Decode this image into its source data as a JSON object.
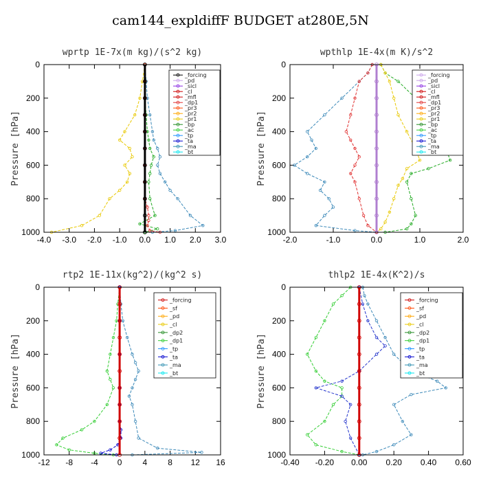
{
  "figure_title": "cam144_expldiffF  BUDGET at280E,5N",
  "chart_data": [
    {
      "type": "line",
      "title": "wprtp  1E-7x(m kg)/(s^2 kg)",
      "ylabel": "Pressure [hPa]",
      "xlim": [
        -4.0,
        3.0
      ],
      "ylim": [
        1000,
        0
      ],
      "xticks": [
        "-4.0",
        "-3.0",
        "-2.0",
        "-1.0",
        "0.0",
        "1.0",
        "2.0",
        "3.0"
      ],
      "xtick_values": [
        -4,
        -3,
        -2,
        -1,
        0,
        1,
        2,
        3
      ],
      "yticks": [
        "0",
        "200",
        "400",
        "600",
        "800",
        "1000"
      ],
      "ytick_values": [
        0,
        200,
        400,
        600,
        800,
        1000
      ],
      "legend": [
        "_forcing",
        "_pd",
        "_sicl",
        "_cl",
        "_mfl",
        "_dp1",
        "_pr3",
        "_pr2",
        "_pr1",
        "_bp",
        "_ac",
        "_tp",
        "_ta",
        "_ma",
        "_bt"
      ],
      "legend_colors": [
        "#000000",
        "#c8a0e8",
        "#8a2be2",
        "#cc0000",
        "#cc0000",
        "#e03030",
        "#ff4500",
        "#ffa500",
        "#e8c800",
        "#228b22",
        "#32cd32",
        "#1e90ff",
        "#0000cd",
        "#2f8fb0",
        "#00e5ee"
      ],
      "series": [
        {
          "name": "_tp",
          "color": "#3a88b8",
          "x": [
            0,
            0.05,
            0.1,
            0.2,
            0.3,
            0.35,
            0.5,
            0.6,
            0.5,
            0.6,
            0.8,
            1.0,
            1.3,
            1.8,
            2.3,
            1.2,
            0.3
          ],
          "y": [
            0,
            100,
            200,
            300,
            400,
            450,
            500,
            550,
            600,
            650,
            700,
            750,
            800,
            900,
            960,
            990,
            1000
          ]
        },
        {
          "name": "_ac",
          "color": "#22aa22",
          "x": [
            0,
            0,
            0,
            0.05,
            0.1,
            0.15,
            0.2,
            0.35,
            0.25,
            0.2,
            0.15,
            0.2,
            0.4,
            -0.2,
            0.5,
            0
          ],
          "y": [
            0,
            100,
            200,
            300,
            400,
            450,
            500,
            550,
            600,
            650,
            700,
            800,
            900,
            950,
            980,
            1000
          ]
        },
        {
          "name": "_pr1",
          "color": "#e8c800",
          "x": [
            0,
            -0.1,
            -0.2,
            -0.4,
            -0.8,
            -1.0,
            -0.6,
            -0.5,
            -0.8,
            -0.6,
            -0.7,
            -1.0,
            -1.4,
            -1.8,
            -2.5,
            -3.7
          ],
          "y": [
            0,
            100,
            200,
            300,
            400,
            450,
            500,
            550,
            600,
            650,
            700,
            750,
            800,
            900,
            960,
            1000
          ]
        },
        {
          "name": "_dp1",
          "color": "#e03030",
          "x": [
            0,
            0,
            0,
            0,
            0,
            0,
            0,
            0,
            0,
            0.1,
            0.15,
            0.15,
            0.1,
            0.2,
            0.6
          ],
          "y": [
            0,
            100,
            200,
            300,
            400,
            500,
            600,
            700,
            800,
            850,
            900,
            930,
            960,
            990,
            1000
          ]
        },
        {
          "name": "_forcing",
          "color": "#000000",
          "x": [
            0,
            0,
            0,
            0,
            0,
            0,
            0,
            0,
            0,
            0,
            0
          ],
          "y": [
            0,
            100,
            200,
            300,
            400,
            500,
            600,
            700,
            800,
            900,
            1000
          ]
        }
      ]
    },
    {
      "type": "line",
      "title": "wpthlp  1E-4x(m K)/s^2",
      "ylabel": "Pressure [hPa]",
      "xlim": [
        -2.0,
        2.0
      ],
      "ylim": [
        1000,
        0
      ],
      "xticks": [
        "-2.0",
        "-1.0",
        "0.0",
        "1.0",
        "2.0"
      ],
      "xtick_values": [
        -2,
        -1,
        0,
        1,
        2
      ],
      "yticks": [
        "0",
        "200",
        "400",
        "600",
        "800",
        "1000"
      ],
      "ytick_values": [
        0,
        200,
        400,
        600,
        800,
        1000
      ],
      "legend": [
        "_forcing",
        "_pd",
        "_sicl",
        "_cl",
        "_mfl",
        "_dp1",
        "_pr3",
        "_pr2",
        "_pr1",
        "_bp",
        "_ac",
        "_tp",
        "_ta",
        "_ma",
        "_bt"
      ],
      "legend_colors": [
        "#c8a0e8",
        "#c8a0e8",
        "#8a2be2",
        "#cc0000",
        "#cc0000",
        "#e03030",
        "#ff4500",
        "#ffa500",
        "#e8c800",
        "#228b22",
        "#32cd32",
        "#1e90ff",
        "#0000cd",
        "#2f8fb0",
        "#00e5ee"
      ],
      "series": [
        {
          "name": "_tp",
          "color": "#3a88b8",
          "x": [
            -0.1,
            -0.2,
            -0.4,
            -0.8,
            -1.2,
            -1.6,
            -1.5,
            -1.4,
            -1.6,
            -1.9,
            -1.6,
            -1.2,
            -1.3,
            -1.1,
            -1.0,
            -1.2,
            -1.4,
            -0.5,
            0
          ],
          "y": [
            0,
            50,
            100,
            200,
            300,
            400,
            450,
            500,
            550,
            600,
            650,
            700,
            750,
            800,
            850,
            900,
            960,
            990,
            1000
          ]
        },
        {
          "name": "_ac",
          "color": "#22aa22",
          "x": [
            0.1,
            0.2,
            0.5,
            0.9,
            1.2,
            1.5,
            1.6,
            1.7,
            1.2,
            0.8,
            0.7,
            0.8,
            0.9,
            0.8,
            0.7,
            0.2
          ],
          "y": [
            0,
            50,
            100,
            200,
            300,
            400,
            500,
            570,
            620,
            650,
            700,
            800,
            900,
            950,
            980,
            1000
          ]
        },
        {
          "name": "_pr1",
          "color": "#e8c800",
          "x": [
            0.1,
            0.2,
            0.3,
            0.4,
            0.5,
            0.7,
            0.9,
            1.0,
            0.7,
            0.6,
            0.5,
            0.4,
            0.3,
            0.2,
            0.1,
            0
          ],
          "y": [
            0,
            50,
            100,
            200,
            300,
            400,
            500,
            570,
            620,
            680,
            720,
            800,
            880,
            940,
            980,
            1000
          ]
        },
        {
          "name": "_dp1",
          "color": "#e03030",
          "x": [
            -0.1,
            -0.2,
            -0.4,
            -0.5,
            -0.6,
            -0.7,
            -0.6,
            -0.5,
            -0.4,
            -0.5,
            -0.6,
            -0.5,
            -0.4,
            -0.3,
            -0.2,
            0
          ],
          "y": [
            0,
            50,
            100,
            200,
            300,
            400,
            450,
            500,
            550,
            600,
            650,
            700,
            800,
            900,
            960,
            1000
          ]
        },
        {
          "name": "_forcing",
          "color": "#b07fd0",
          "x": [
            0,
            0,
            0,
            0,
            0,
            0,
            0,
            0,
            0,
            0,
            0
          ],
          "y": [
            0,
            100,
            200,
            300,
            400,
            500,
            600,
            700,
            800,
            900,
            1000
          ]
        }
      ]
    },
    {
      "type": "line",
      "title": "rtp2  1E-11x(kg^2)/(kg^2 s)",
      "ylabel": "Pressure [hPa]",
      "xlim": [
        -12,
        16
      ],
      "ylim": [
        1000,
        0
      ],
      "xticks": [
        "-12",
        "-8",
        "-4",
        "0",
        "4",
        "8",
        "12",
        "16"
      ],
      "xtick_values": [
        -12,
        -8,
        -4,
        0,
        4,
        8,
        12,
        16
      ],
      "yticks": [
        "0",
        "200",
        "400",
        "600",
        "800",
        "1000"
      ],
      "ytick_values": [
        0,
        200,
        400,
        600,
        800,
        1000
      ],
      "legend": [
        "_forcing",
        "_sf",
        "_pd",
        "_cl",
        "_dp2",
        "_dp1",
        "_tp",
        "_ta",
        "_ma",
        "_bt"
      ],
      "legend_colors": [
        "#cc0000",
        "#ff4500",
        "#ffa500",
        "#e8c800",
        "#228b22",
        "#32cd32",
        "#1e90ff",
        "#0000cd",
        "#2f8fb0",
        "#00e5ee"
      ],
      "series": [
        {
          "name": "_tp",
          "color": "#3a88b8",
          "x": [
            0,
            0.2,
            0.5,
            1.2,
            2.0,
            2.5,
            3.0,
            2.5,
            2.0,
            1.5,
            2.0,
            2.5,
            3.0,
            6.0,
            13.0,
            2.0
          ],
          "y": [
            0,
            100,
            200,
            300,
            400,
            450,
            500,
            550,
            600,
            650,
            700,
            800,
            900,
            960,
            985,
            1000
          ]
        },
        {
          "name": "_dp1",
          "color": "#32cd32",
          "x": [
            0,
            -0.3,
            -0.5,
            -1.0,
            -1.5,
            -2.0,
            -1.5,
            -1.0,
            -2.0,
            -4.0,
            -6.0,
            -9.0,
            -10.0,
            -8.0,
            -4.0,
            -1.0
          ],
          "y": [
            0,
            100,
            200,
            300,
            400,
            500,
            550,
            600,
            700,
            800,
            850,
            900,
            940,
            970,
            990,
            1000
          ]
        },
        {
          "name": "_ta",
          "color": "#0000cd",
          "x": [
            0,
            0,
            0,
            0,
            0,
            0,
            0.2,
            0.2,
            -0.3,
            -1.5,
            -3.0,
            -0.5
          ],
          "y": [
            0,
            200,
            400,
            600,
            700,
            800,
            850,
            900,
            940,
            970,
            990,
            1000
          ]
        },
        {
          "name": "_forcing",
          "color": "#d00000",
          "x": [
            0,
            0,
            0,
            0,
            0,
            0,
            0,
            0,
            0,
            0,
            0
          ],
          "y": [
            0,
            100,
            200,
            300,
            400,
            500,
            600,
            700,
            800,
            900,
            1000
          ]
        }
      ]
    },
    {
      "type": "line",
      "title": "thlp2  1E-4x(K^2)/s",
      "ylabel": "Pressure [hPa]",
      "xlim": [
        -0.4,
        0.6
      ],
      "ylim": [
        1000,
        0
      ],
      "xticks": [
        "-0.40",
        "-0.20",
        "0.00",
        "0.20",
        "0.40",
        "0.60"
      ],
      "xtick_values": [
        -0.4,
        -0.2,
        0,
        0.2,
        0.4,
        0.6
      ],
      "yticks": [
        "0",
        "200",
        "400",
        "600",
        "800",
        "1000"
      ],
      "ytick_values": [
        0,
        200,
        400,
        600,
        800,
        1000
      ],
      "legend": [
        "_forcing",
        "_sf",
        "_pd",
        "_cl",
        "_dp2",
        "_dp1",
        "_tp",
        "_ta",
        "_ma",
        "_bt"
      ],
      "legend_colors": [
        "#cc0000",
        "#ff4500",
        "#ffa500",
        "#e8c800",
        "#228b22",
        "#32cd32",
        "#1e90ff",
        "#0000cd",
        "#2f8fb0",
        "#00e5ee"
      ],
      "series": [
        {
          "name": "_tp",
          "color": "#3a88b8",
          "x": [
            0.02,
            0.03,
            0.05,
            0.1,
            0.15,
            0.2,
            0.3,
            0.45,
            0.5,
            0.3,
            0.2,
            0.25,
            0.3,
            0.2,
            0.1,
            0.02
          ],
          "y": [
            0,
            50,
            100,
            200,
            300,
            400,
            500,
            560,
            600,
            640,
            700,
            800,
            880,
            940,
            980,
            1000
          ]
        },
        {
          "name": "_dp1",
          "color": "#32cd32",
          "x": [
            -0.05,
            -0.1,
            -0.15,
            -0.2,
            -0.25,
            -0.3,
            -0.25,
            -0.2,
            -0.1,
            -0.1,
            -0.15,
            -0.2,
            -0.3,
            -0.25,
            -0.1,
            0
          ],
          "y": [
            0,
            50,
            100,
            200,
            300,
            400,
            500,
            560,
            600,
            650,
            700,
            800,
            880,
            940,
            980,
            1000
          ]
        },
        {
          "name": "_ta",
          "color": "#2233cc",
          "x": [
            0,
            0.02,
            0.05,
            0.1,
            0.15,
            0.1,
            0.0,
            -0.1,
            -0.25,
            -0.1,
            -0.05,
            -0.08,
            -0.05,
            0
          ],
          "y": [
            0,
            100,
            200,
            300,
            350,
            400,
            500,
            560,
            600,
            650,
            700,
            800,
            900,
            1000
          ]
        },
        {
          "name": "_forcing",
          "color": "#d00000",
          "x": [
            0,
            0,
            0,
            0,
            0,
            0,
            0,
            0,
            0,
            0,
            0
          ],
          "y": [
            0,
            100,
            200,
            300,
            400,
            500,
            600,
            700,
            800,
            900,
            1000
          ]
        }
      ]
    }
  ]
}
